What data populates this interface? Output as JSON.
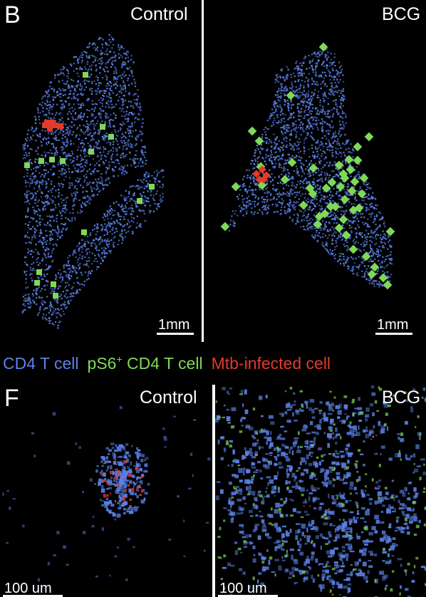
{
  "panel_b": {
    "letter": "B",
    "left_condition": "Control",
    "right_condition": "BCG",
    "left_scale": "1mm",
    "right_scale": "1mm"
  },
  "legend": {
    "cd4": "CD4 T cell",
    "ps6_prefix": "pS6",
    "ps6_sup": "+",
    "ps6_suffix": " CD4 T cell",
    "mtb": "Mtb-infected cell"
  },
  "panel_f": {
    "letter": "F",
    "left_condition": "Control",
    "right_condition": "BCG",
    "left_scale": "100 um",
    "right_scale": "100 um"
  },
  "colors": {
    "cd4": "#5b82e8",
    "ps6": "#7ed957",
    "mtb": "#e23a2c",
    "background": "#000000"
  }
}
